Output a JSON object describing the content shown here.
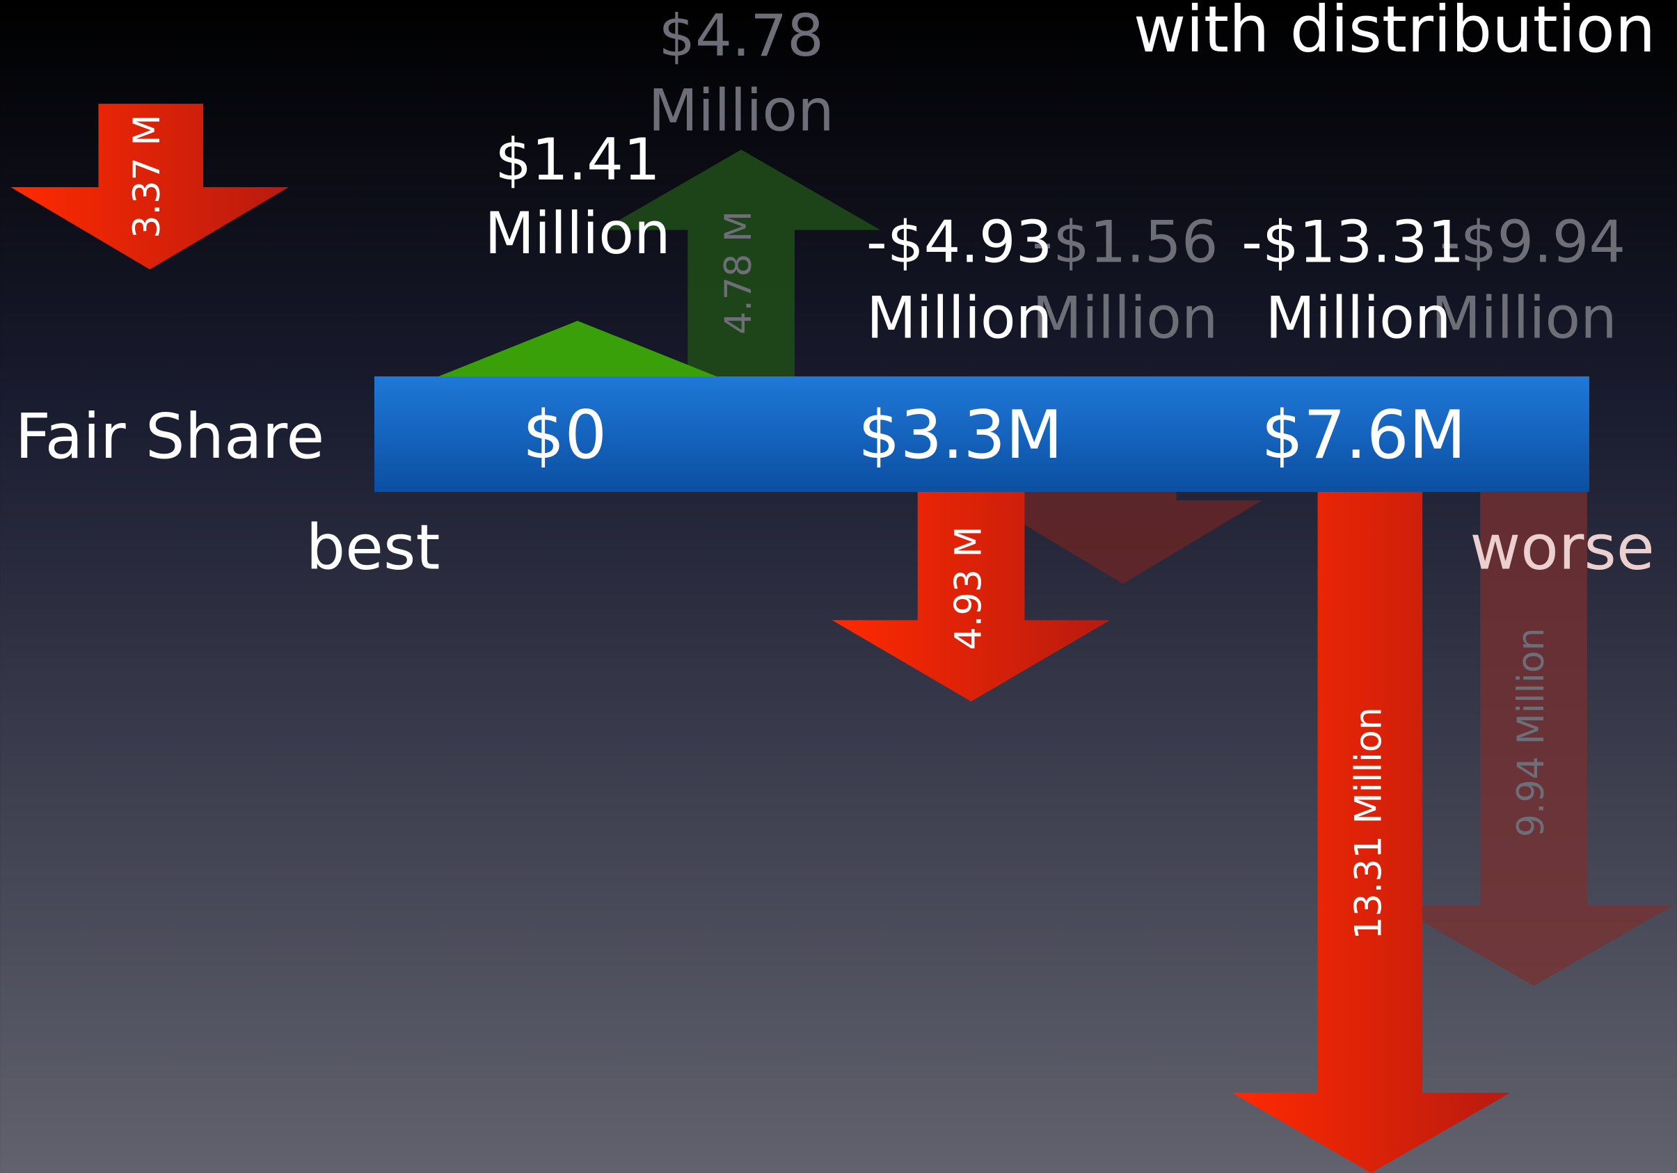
{
  "title": "with distribution",
  "row_label": "Fair Share",
  "bar_labels": [
    "$0",
    "$3.3M",
    "$7.6M"
  ],
  "ends": {
    "left": "best",
    "right": "worse"
  },
  "callouts": [
    {
      "amount": "$1.41",
      "unit": "Million"
    },
    {
      "amount": "$4.78",
      "unit": "Million"
    },
    {
      "amount": "-$4.93",
      "unit": "Million"
    },
    {
      "amount": "-$1.56",
      "unit": "Million"
    },
    {
      "amount": "-$13.31",
      "unit": "Million"
    },
    {
      "amount": "-$9.94",
      "unit": "Million"
    }
  ],
  "arrows": [
    "3.37 M",
    "4.78 M",
    "4.93 M",
    "13.31 Million",
    "9.94 Million"
  ]
}
